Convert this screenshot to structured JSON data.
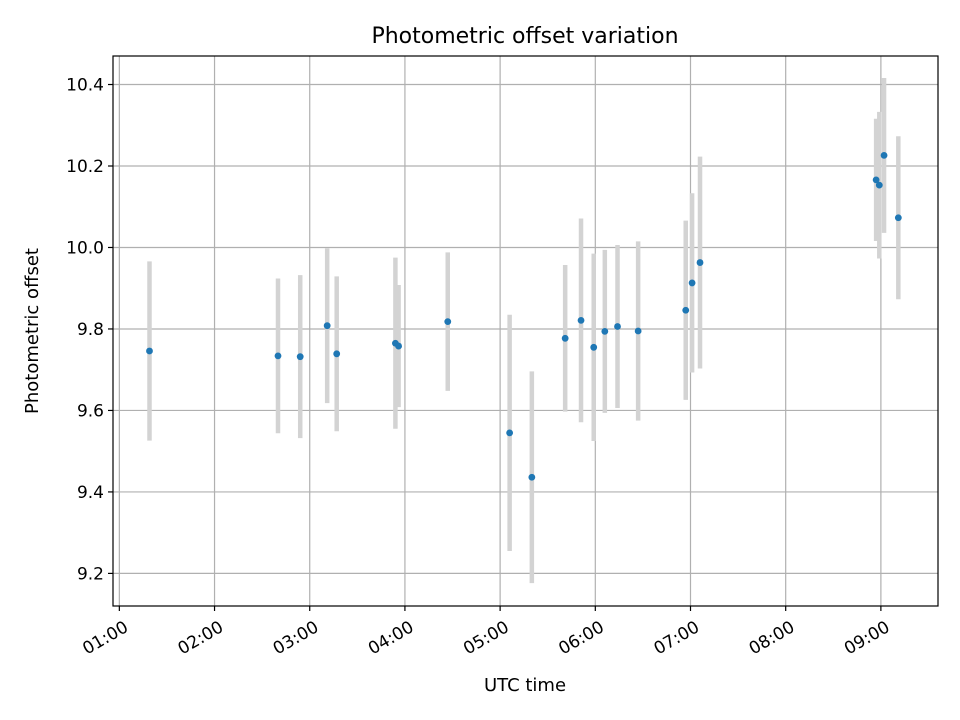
{
  "chart_data": {
    "type": "scatter",
    "title": "Photometric offset variation",
    "xlabel": "UTC time",
    "ylabel": "Photometric offset",
    "x_format": "HH:MM",
    "x_ticks": [
      "01:00",
      "02:00",
      "03:00",
      "04:00",
      "05:00",
      "06:00",
      "07:00",
      "08:00",
      "09:00"
    ],
    "y_ticks": [
      "9.2",
      "9.4",
      "9.6",
      "9.8",
      "10.0",
      "10.2",
      "10.4"
    ],
    "xlim": [
      "00:56",
      "09:36"
    ],
    "ylim": [
      9.12,
      10.47
    ],
    "grid": true,
    "marker_color": "#1f77b4",
    "errorbar_color": "#d3d3d3",
    "series": [
      {
        "x": [
          "01:19",
          "02:40",
          "02:54",
          "03:11",
          "03:17",
          "03:54",
          "03:56",
          "04:27",
          "05:06",
          "05:20",
          "05:41",
          "05:51",
          "05:59",
          "06:06",
          "06:14",
          "06:27",
          "06:57",
          "07:01",
          "07:06",
          "08:57",
          "08:59",
          "09:02",
          "09:11"
        ],
        "y": [
          9.746,
          9.734,
          9.732,
          9.808,
          9.739,
          9.765,
          9.758,
          9.818,
          9.545,
          9.436,
          9.777,
          9.821,
          9.755,
          9.794,
          9.806,
          9.795,
          9.846,
          9.913,
          9.963,
          10.166,
          10.153,
          10.226,
          10.073
        ],
        "yerr": [
          0.22,
          0.19,
          0.2,
          0.19,
          0.19,
          0.21,
          0.15,
          0.17,
          0.29,
          0.26,
          0.18,
          0.25,
          0.23,
          0.2,
          0.2,
          0.22,
          0.22,
          0.22,
          0.26,
          0.15,
          0.18,
          0.19,
          0.2
        ]
      }
    ]
  }
}
